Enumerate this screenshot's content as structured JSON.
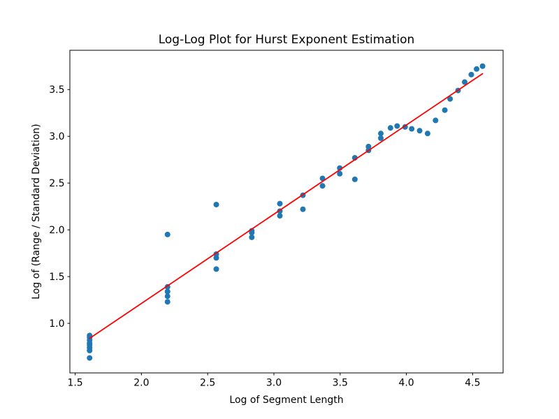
{
  "figure": {
    "background": "#ffffff"
  },
  "chart_data": {
    "type": "scatter",
    "title": "Log-Log Plot for Hurst Exponent Estimation",
    "xlabel": "Log of Segment Length",
    "ylabel": "Log of (Range / Standard Deviation)",
    "xlim": [
      1.46,
      4.73
    ],
    "ylim": [
      0.47,
      3.92
    ],
    "x_ticks": [
      1.5,
      2.0,
      2.5,
      3.0,
      3.5,
      4.0,
      4.5
    ],
    "y_ticks": [
      1.0,
      1.5,
      2.0,
      2.5,
      3.0,
      3.5
    ],
    "grid": false,
    "legend_position": "none",
    "axis_color": "#000000",
    "series": [
      {
        "name": "rs-scatter",
        "type": "scatter",
        "color": "#1f77b4",
        "marker_radius": 4,
        "points": [
          [
            1.609,
            0.87
          ],
          [
            1.609,
            0.85
          ],
          [
            1.609,
            0.82
          ],
          [
            1.609,
            0.79
          ],
          [
            1.609,
            0.77
          ],
          [
            1.609,
            0.74
          ],
          [
            1.609,
            0.71
          ],
          [
            1.609,
            0.63
          ],
          [
            2.197,
            1.95
          ],
          [
            2.197,
            1.39
          ],
          [
            2.197,
            1.34
          ],
          [
            2.197,
            1.29
          ],
          [
            2.197,
            1.23
          ],
          [
            2.565,
            2.27
          ],
          [
            2.565,
            1.74
          ],
          [
            2.565,
            1.7
          ],
          [
            2.565,
            1.58
          ],
          [
            2.833,
            1.99
          ],
          [
            2.833,
            1.97
          ],
          [
            2.833,
            1.92
          ],
          [
            3.045,
            2.28
          ],
          [
            3.045,
            2.2
          ],
          [
            3.045,
            2.15
          ],
          [
            3.219,
            2.37
          ],
          [
            3.219,
            2.22
          ],
          [
            3.367,
            2.55
          ],
          [
            3.367,
            2.47
          ],
          [
            3.497,
            2.66
          ],
          [
            3.497,
            2.6
          ],
          [
            3.611,
            2.77
          ],
          [
            3.611,
            2.54
          ],
          [
            3.714,
            2.89
          ],
          [
            3.714,
            2.85
          ],
          [
            3.807,
            3.03
          ],
          [
            3.807,
            2.98
          ],
          [
            3.88,
            3.09
          ],
          [
            3.93,
            3.11
          ],
          [
            3.99,
            3.1
          ],
          [
            4.04,
            3.08
          ],
          [
            4.1,
            3.06
          ],
          [
            4.16,
            3.03
          ],
          [
            4.22,
            3.17
          ],
          [
            4.29,
            3.28
          ],
          [
            4.33,
            3.4
          ],
          [
            4.39,
            3.49
          ],
          [
            4.44,
            3.58
          ],
          [
            4.49,
            3.66
          ],
          [
            4.53,
            3.72
          ],
          [
            4.575,
            3.75
          ]
        ]
      },
      {
        "name": "fit-line",
        "type": "line",
        "color": "#ff0000",
        "width": 1.8,
        "points": [
          [
            1.609,
            0.84
          ],
          [
            4.575,
            3.67
          ]
        ]
      }
    ]
  }
}
